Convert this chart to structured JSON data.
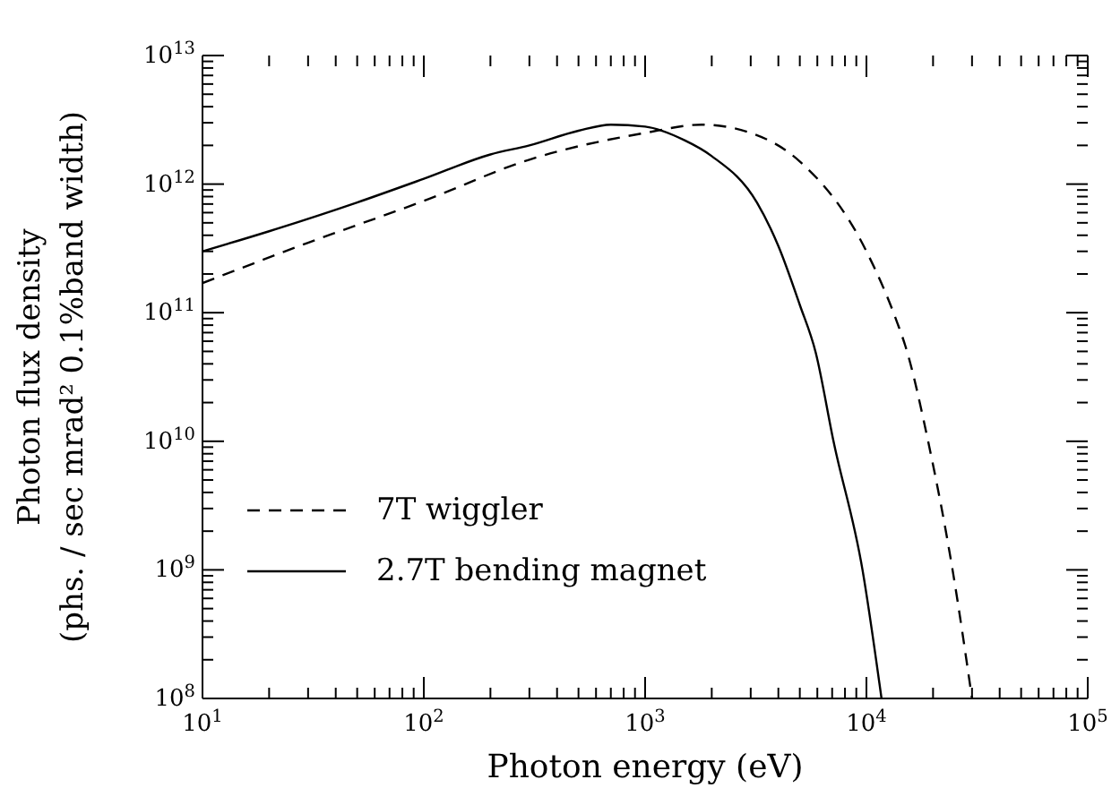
{
  "chart_data": {
    "type": "line",
    "xlabel": "Photon energy (eV)",
    "ylabel": "Photon flux density\n(phs. / sec mrad² 0.1%band width)",
    "log": "xy",
    "xlim": [
      10,
      100000
    ],
    "ylim": [
      100000000,
      10000000000000
    ],
    "xticks": [
      {
        "value": 10,
        "label": "10$^{1}$"
      },
      {
        "value": 20,
        "label": null
      },
      {
        "value": 30,
        "label": null
      },
      {
        "value": 40,
        "label": null
      },
      {
        "value": 50,
        "label": null
      },
      {
        "value": 60,
        "label": null
      },
      {
        "value": 70,
        "label": null
      },
      {
        "value": 80,
        "label": null
      },
      {
        "value": 90,
        "label": null
      },
      {
        "value": 100,
        "label": "10$^{2}$"
      },
      {
        "value": 200,
        "label": null
      },
      {
        "value": 300,
        "label": null
      },
      {
        "value": 400,
        "label": null
      },
      {
        "value": 500,
        "label": null
      },
      {
        "value": 600,
        "label": null
      },
      {
        "value": 700,
        "label": null
      },
      {
        "value": 800,
        "label": null
      },
      {
        "value": 900,
        "label": null
      },
      {
        "value": 1000,
        "label": "10$^{3}$"
      },
      {
        "value": 2000,
        "label": null
      },
      {
        "value": 3000,
        "label": null
      },
      {
        "value": 4000,
        "label": null
      },
      {
        "value": 5000,
        "label": null
      },
      {
        "value": 6000,
        "label": null
      },
      {
        "value": 7000,
        "label": null
      },
      {
        "value": 8000,
        "label": null
      },
      {
        "value": 9000,
        "label": null
      },
      {
        "value": 10000,
        "label": "10$^{4}$"
      },
      {
        "value": 20000,
        "label": null
      },
      {
        "value": 30000,
        "label": null
      },
      {
        "value": 40000,
        "label": null
      },
      {
        "value": 50000,
        "label": null
      },
      {
        "value": 60000,
        "label": null
      },
      {
        "value": 70000,
        "label": null
      },
      {
        "value": 80000,
        "label": null
      },
      {
        "value": 90000,
        "label": null
      },
      {
        "value": 100000,
        "label": "10$^{5}$"
      }
    ],
    "yticks": [
      {
        "value": 100000000.0,
        "label": "10$^{8}$"
      },
      {
        "value": 200000000.0,
        "label": null
      },
      {
        "value": 300000000.0,
        "label": null
      },
      {
        "value": 400000000.0,
        "label": null
      },
      {
        "value": 500000000.0,
        "label": null
      },
      {
        "value": 600000000.0,
        "label": null
      },
      {
        "value": 700000000.0,
        "label": null
      },
      {
        "value": 800000000.0,
        "label": null
      },
      {
        "value": 900000000.0,
        "label": null
      },
      {
        "value": 1000000000.0,
        "label": "10$^{9}$"
      },
      {
        "value": 2000000000.0,
        "label": null
      },
      {
        "value": 3000000000.0,
        "label": null
      },
      {
        "value": 4000000000.0,
        "label": null
      },
      {
        "value": 5000000000.0,
        "label": null
      },
      {
        "value": 6000000000.0,
        "label": null
      },
      {
        "value": 7000000000.0,
        "label": null
      },
      {
        "value": 8000000000.0,
        "label": null
      },
      {
        "value": 9000000000.0,
        "label": null
      },
      {
        "value": 10000000000.0,
        "label": "10$^{10}$"
      },
      {
        "value": 20000000000.0,
        "label": null
      },
      {
        "value": 30000000000.0,
        "label": null
      },
      {
        "value": 40000000000.0,
        "label": null
      },
      {
        "value": 50000000000.0,
        "label": null
      },
      {
        "value": 60000000000.0,
        "label": null
      },
      {
        "value": 70000000000.0,
        "label": null
      },
      {
        "value": 80000000000.0,
        "label": null
      },
      {
        "value": 90000000000.0,
        "label": null
      },
      {
        "value": 100000000000.0,
        "label": "10$^{11}$"
      },
      {
        "value": 200000000000.0,
        "label": null
      },
      {
        "value": 300000000000.0,
        "label": null
      },
      {
        "value": 400000000000.0,
        "label": null
      },
      {
        "value": 500000000000.0,
        "label": null
      },
      {
        "value": 600000000000.0,
        "label": null
      },
      {
        "value": 700000000000.0,
        "label": null
      },
      {
        "value": 800000000000.0,
        "label": null
      },
      {
        "value": 900000000000.0,
        "label": null
      },
      {
        "value": 1000000000000.0,
        "label": "10$^{12}$"
      },
      {
        "value": 2000000000000.0,
        "label": null
      },
      {
        "value": 3000000000000.0,
        "label": null
      },
      {
        "value": 4000000000000.0,
        "label": null
      },
      {
        "value": 5000000000000.0,
        "label": null
      },
      {
        "value": 6000000000000.0,
        "label": null
      },
      {
        "value": 7000000000000.0,
        "label": null
      },
      {
        "value": 8000000000000.0,
        "label": null
      },
      {
        "value": 9000000000000.0,
        "label": null
      },
      {
        "value": 10000000000000.0,
        "label": "10$^{13}$"
      }
    ],
    "legend": "bottom left",
    "grid": false,
    "marker": "none",
    "series": [
      {
        "name": "7T wiggler",
        "color": "#000000",
        "line_style": "dashed",
        "x": [
          10,
          30,
          100,
          300,
          1000,
          1800,
          3000,
          5000,
          10000,
          13800,
          15000,
          19000,
          24500,
          30000
        ],
        "values": [
          170000000000.0,
          350000000000.0,
          740000000000.0,
          1550000000000.0,
          2500000000000.0,
          2900000000000.0,
          2500000000000.0,
          1500000000000.0,
          300000000000.0,
          83000000000.0,
          55000000000.0,
          10000000000.0,
          1000000000.0,
          100000000.0
        ]
      },
      {
        "name": "2.7T bending magnet",
        "color": "#000000",
        "line_style": "solid",
        "x": [
          10,
          20,
          50,
          100,
          200,
          300,
          500,
          700,
          1000,
          1500,
          2000,
          3200,
          4000,
          5000,
          5900,
          7100,
          9600,
          11700
        ],
        "values": [
          300000000000.0,
          430000000000.0,
          720000000000.0,
          1100000000000.0,
          1700000000000.0,
          2000000000000.0,
          2600000000000.0,
          2900000000000.0,
          2800000000000.0,
          2200000000000.0,
          1650000000000.0,
          720000000000.0,
          330000000000.0,
          115000000000.0,
          49000000000.0,
          10000000000.0,
          1000000000.0,
          100000000.0
        ]
      }
    ]
  }
}
